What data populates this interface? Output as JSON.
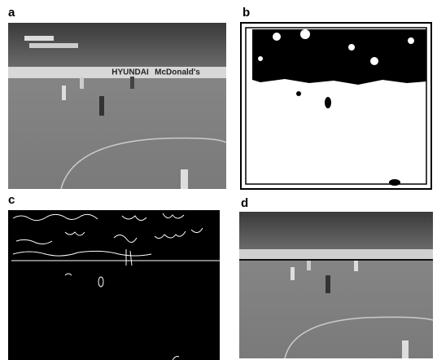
{
  "panels": [
    {
      "label": "a",
      "texts": [
        "HYUNDAI",
        "McDonald's"
      ]
    },
    {
      "label": "b"
    },
    {
      "label": "c"
    },
    {
      "label": "d"
    }
  ]
}
